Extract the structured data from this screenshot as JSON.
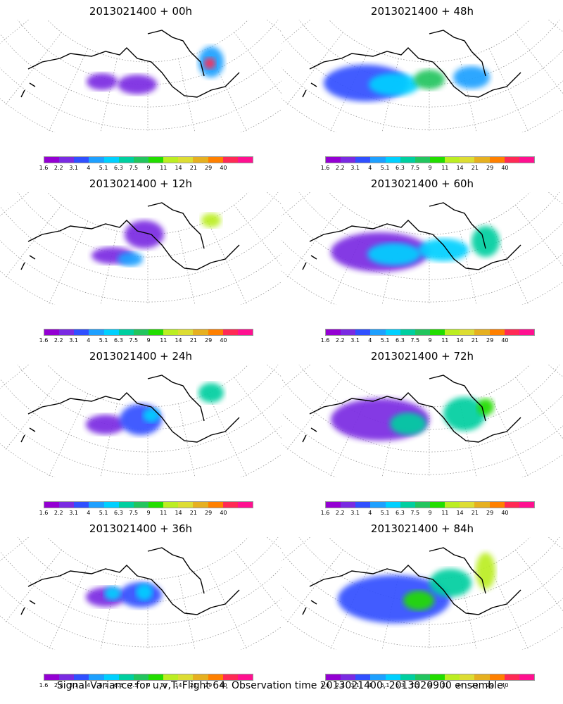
{
  "panels": [
    {
      "title": "2013021400 + 00h"
    },
    {
      "title": "2013021400 + 48h"
    },
    {
      "title": "2013021400 + 12h"
    },
    {
      "title": "2013021400 + 60h"
    },
    {
      "title": "2013021400 + 24h"
    },
    {
      "title": "2013021400 + 72h"
    },
    {
      "title": "2013021400 + 36h"
    },
    {
      "title": "2013021400 + 84h"
    }
  ],
  "colorbar": {
    "labels": [
      "1.6",
      "2.2",
      "3.1",
      "4",
      "5.1",
      "6.3",
      "7.5",
      "9",
      "11",
      "14",
      "21",
      "29",
      "40"
    ],
    "colors": [
      "#9400d3",
      "#7a2be2",
      "#3050ff",
      "#1ea0ff",
      "#00d0ff",
      "#00cfa0",
      "#22c55e",
      "#22dd00",
      "#bbee22",
      "#dddd33",
      "#e6b020",
      "#ff8000",
      "#ff2a55",
      "#ff1090"
    ]
  },
  "footer": "Signal Variance for u,v,T. Flight 64. Observation time 2013021400. 2013020900 ensemble."
}
